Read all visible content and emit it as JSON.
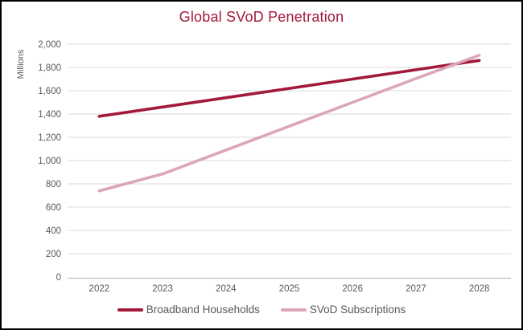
{
  "frame": {
    "background": "#FFFFFF",
    "border_color": "#000000"
  },
  "chart_data": {
    "type": "line",
    "title": "Global SVoD Penetration",
    "xlabel": "",
    "ylabel": "Millions",
    "x": [
      "2022",
      "2023",
      "2024",
      "2025",
      "2026",
      "2027",
      "2028"
    ],
    "series": [
      {
        "name": "Broadband Households",
        "color": "#A3193A",
        "values": [
          1380,
          1460,
          1540,
          1620,
          1700,
          1780,
          1860
        ]
      },
      {
        "name": "SVoD Subscriptions",
        "color": "#DCA6B9",
        "values": [
          740,
          885,
          1090,
          1295,
          1500,
          1705,
          1905
        ]
      }
    ],
    "ylim": [
      0,
      2000
    ],
    "ytick_step": 200,
    "grid": "horizontal",
    "legend_position": "bottom",
    "colors": {
      "title": "#A3193A",
      "gridline": "#D9D9D9",
      "axis_line": "#BFBFBF",
      "tick_label": "#595959",
      "legend_label": "#595959"
    }
  }
}
